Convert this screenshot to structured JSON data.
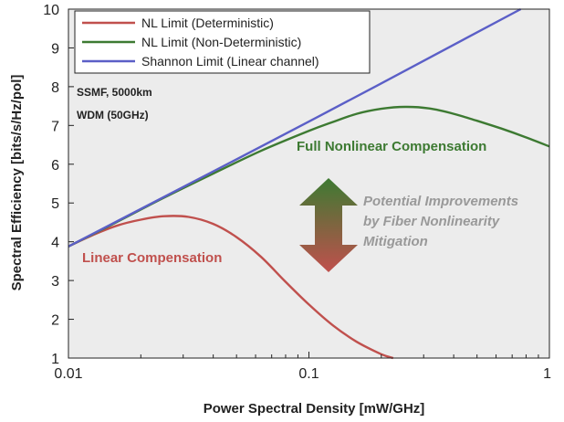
{
  "chart_data": {
    "type": "line",
    "xlabel": "Power Spectral Density [mW/GHz]",
    "ylabel": "Spectral Efficiency [bits/s/Hz/pol]",
    "xscale": "log",
    "xlim": [
      0.01,
      1
    ],
    "ylim": [
      1,
      10
    ],
    "x_ticks": [
      "0.01",
      "0.1",
      "1"
    ],
    "y_ticks": [
      "1",
      "2",
      "3",
      "4",
      "5",
      "6",
      "7",
      "8",
      "9",
      "10"
    ],
    "grid": false,
    "plot_background": "#ececec",
    "legend_position": "top-left",
    "series": [
      {
        "name": "NL Limit (Deterministic)",
        "color": "#c0504d",
        "x": [
          0.01,
          0.0126,
          0.0158,
          0.02,
          0.025,
          0.0316,
          0.04,
          0.05,
          0.063,
          0.079,
          0.1,
          0.126,
          0.158,
          0.2,
          0.224
        ],
        "y": [
          3.88,
          4.17,
          4.41,
          4.57,
          4.66,
          4.64,
          4.46,
          4.12,
          3.62,
          3.0,
          2.38,
          1.84,
          1.42,
          1.1,
          1.0
        ]
      },
      {
        "name": "NL Limit (Non-Deterministic)",
        "color": "#3d7a32",
        "x": [
          0.01,
          0.0158,
          0.025,
          0.04,
          0.063,
          0.1,
          0.126,
          0.158,
          0.2,
          0.251,
          0.316,
          0.4,
          0.5,
          0.631,
          0.794,
          1.0
        ],
        "y": [
          3.88,
          4.5,
          5.14,
          5.76,
          6.34,
          6.86,
          7.09,
          7.3,
          7.43,
          7.48,
          7.44,
          7.3,
          7.12,
          6.92,
          6.7,
          6.46
        ]
      },
      {
        "name": "Shannon Limit (Linear channel)",
        "color": "#5b5fc7",
        "x": [
          0.01,
          0.1,
          0.76
        ],
        "y": [
          3.88,
          7.1,
          10.0
        ]
      }
    ],
    "annotations": [
      {
        "text": "SSMF, 5000km",
        "color": "#222222"
      },
      {
        "text": "WDM (50GHz)",
        "color": "#222222"
      },
      {
        "text": "Full Nonlinear Compensation",
        "color": "#3d7a32"
      },
      {
        "text": "Linear Compensation",
        "color": "#c0504d"
      },
      {
        "text": "Potential Improvements",
        "color": "#999999"
      },
      {
        "text": "by Fiber Nonlinearity",
        "color": "#999999"
      },
      {
        "text": "Mitigation",
        "color": "#999999"
      }
    ],
    "arrow_colors": {
      "top": "#3d7a32",
      "bottom": "#c0504d"
    }
  }
}
